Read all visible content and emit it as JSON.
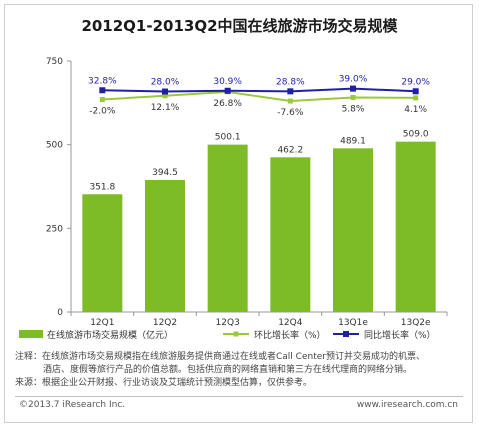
{
  "chart_data": {
    "type": "bar",
    "title": "2012Q1-2013Q2中国在线旅游市场交易规模",
    "categories": [
      "12Q1",
      "12Q2",
      "12Q3",
      "12Q4",
      "13Q1e",
      "13Q2e"
    ],
    "ylim": [
      0,
      750
    ],
    "yticks": [
      0,
      250,
      500,
      750
    ],
    "grid": false,
    "legend_position": "bottom",
    "series": [
      {
        "name": "在线旅游市场交易规模（亿元）",
        "type": "bar",
        "color": "#7dbb27",
        "values": [
          351.8,
          394.5,
          500.1,
          462.2,
          489.1,
          509.0
        ],
        "labels": [
          "351.8",
          "394.5",
          "500.1",
          "462.2",
          "489.1",
          "509.0"
        ]
      },
      {
        "name": "环比增长率（%）",
        "type": "line",
        "color": "#9cc93a",
        "values": [
          -2.0,
          12.1,
          26.8,
          -7.6,
          5.8,
          4.1
        ],
        "labels": [
          "-2.0%",
          "12.1%",
          "26.8%",
          "-7.6%",
          "5.8%",
          "4.1%"
        ]
      },
      {
        "name": "同比增长率（%）",
        "type": "line",
        "color": "#1f1fa8",
        "values": [
          32.8,
          28.0,
          30.9,
          28.8,
          39.0,
          29.0
        ],
        "labels": [
          "32.8%",
          "28.0%",
          "30.9%",
          "28.8%",
          "39.0%",
          "29.0%"
        ]
      }
    ]
  },
  "notes": {
    "line1": "注释：在线旅游市场交易规模指在线旅游服务提供商通过在线或者Call Center预订并交易成功的机票、",
    "line2": "酒店、度假等旅行产品的价值总额。包括供应商的网络直销和第三方在线代理商的网络分销。",
    "line3": "来源：根据企业公开财报、行业访谈及艾瑞统计预测模型估算，仅供参考。"
  },
  "footer": {
    "copyright": "©2013.7 iResearch Inc.",
    "website": "www.iresearch.com.cn"
  }
}
